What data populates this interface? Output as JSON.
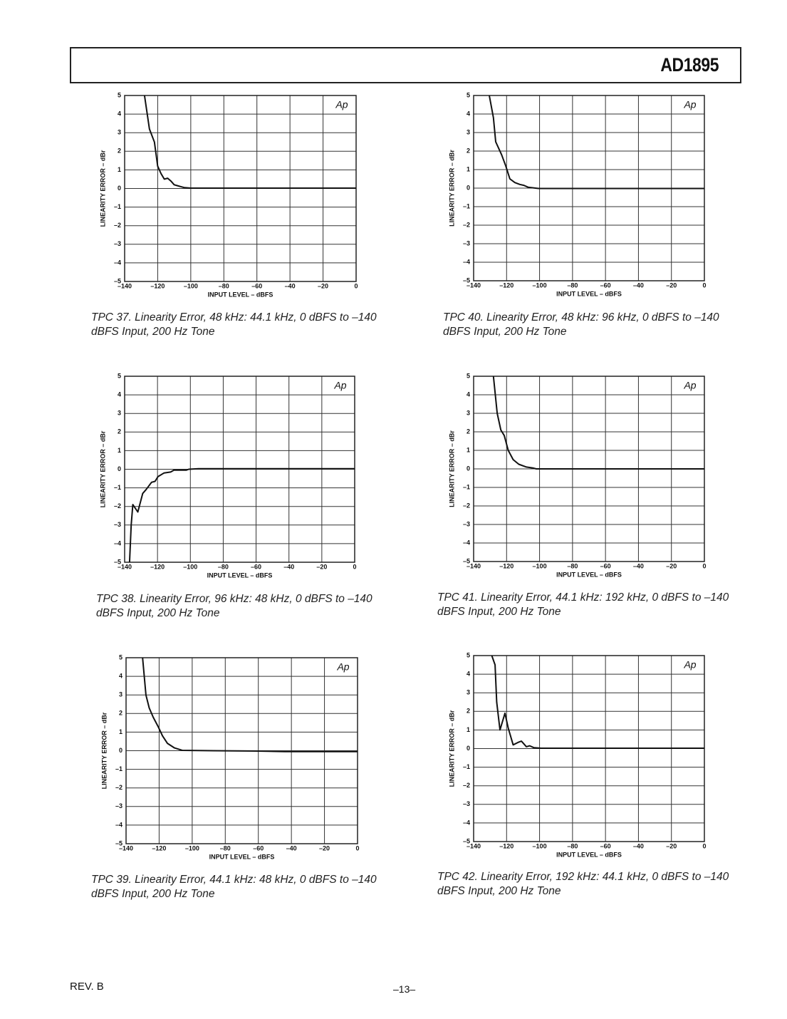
{
  "header": {
    "title": "AD1895"
  },
  "footer": {
    "revision": "REV. B",
    "page": "–13–"
  },
  "chart_data": [
    {
      "type": "line",
      "caption": "TPC 37.  Linearity Error, 48 kHz: 44.1 kHz, 0 dBFS to –140 dBFS Input, 200 Hz Tone",
      "xlabel": "INPUT LEVEL – dBFS",
      "ylabel": "LINEARITY ERROR – dBr",
      "annotation": "Ap",
      "color": "#111111",
      "grid": true,
      "x": [
        -128,
        -125,
        -122,
        -120,
        -118,
        -116,
        -114,
        -112,
        -110,
        -108,
        -106,
        -104,
        -100,
        -80,
        -60,
        -40,
        -20,
        0
      ],
      "values": [
        5,
        3.2,
        2.5,
        1.2,
        0.8,
        0.5,
        0.55,
        0.4,
        0.2,
        0.15,
        0.1,
        0.05,
        0.02,
        0.02,
        0.02,
        0.02,
        0.02,
        0.02
      ],
      "xlim": [
        -140,
        0
      ],
      "ylim": [
        -5,
        5
      ],
      "xticks": [
        {
          "value": -140,
          "label": "–140"
        },
        {
          "value": -120,
          "label": "–120"
        },
        {
          "value": -100,
          "label": "–100"
        },
        {
          "value": -80,
          "label": "–80"
        },
        {
          "value": -60,
          "label": "–60"
        },
        {
          "value": -40,
          "label": "–40"
        },
        {
          "value": -20,
          "label": "–20"
        },
        0
      ],
      "yticks": [
        {
          "value": -5,
          "label": "–5"
        },
        {
          "value": -4,
          "label": "–4"
        },
        {
          "value": -3,
          "label": "–3"
        },
        {
          "value": -2,
          "label": "–2"
        },
        {
          "value": -1,
          "label": "–1"
        },
        0,
        1,
        2,
        3,
        4,
        5
      ]
    },
    {
      "type": "line",
      "caption": "TPC 40.  Linearity Error, 48 kHz: 96 kHz, 0 dBFS to –140 dBFS Input, 200 Hz Tone",
      "xlabel": "INPUT LEVEL – dBFS",
      "ylabel": "LINEARITY ERROR – dBr",
      "annotation": "Ap",
      "color": "#111111",
      "grid": true,
      "x": [
        -130.5,
        -128,
        -126.6,
        -123,
        -120.5,
        -118,
        -115,
        -112,
        -109.5,
        -107,
        -100.6,
        -80,
        -60,
        -40,
        -20,
        0
      ],
      "values": [
        5,
        3.8,
        2.5,
        1.8,
        1.2,
        0.5,
        0.3,
        0.2,
        0.15,
        0.05,
        -0.02,
        -0.02,
        -0.02,
        -0.02,
        -0.02,
        -0.02
      ],
      "xlim": [
        -140,
        0
      ],
      "ylim": [
        -5,
        5
      ],
      "xticks": [
        {
          "value": -140,
          "label": "–140"
        },
        {
          "value": -120,
          "label": "–120"
        },
        {
          "value": -100,
          "label": "–100"
        },
        {
          "value": -80,
          "label": "–80"
        },
        {
          "value": -60,
          "label": "–60"
        },
        {
          "value": -40,
          "label": "–40"
        },
        {
          "value": -20,
          "label": "–20"
        },
        0
      ],
      "yticks": [
        {
          "value": -5,
          "label": "–5"
        },
        {
          "value": -4,
          "label": "–4"
        },
        {
          "value": -3,
          "label": "–3"
        },
        {
          "value": -2,
          "label": "–2"
        },
        {
          "value": -1,
          "label": "–1"
        },
        0,
        1,
        2,
        3,
        4,
        5
      ]
    },
    {
      "type": "line",
      "caption": "TPC 38.  Linearity Error, 96 kHz: 48 kHz, 0 dBFS to –140 dBFS Input, 200 Hz Tone",
      "xlabel": "INPUT LEVEL – dBFS",
      "ylabel": "LINEARITY ERROR – dBr",
      "annotation": "Ap",
      "color": "#111111",
      "grid": true,
      "x": [
        -137,
        -136,
        -135,
        -132,
        -129,
        -127,
        -123.6,
        -121.5,
        -119.7,
        -116,
        -112,
        -110,
        -102.5,
        -101,
        -95,
        -60,
        -20,
        0
      ],
      "values": [
        -5,
        -3,
        -1.9,
        -2.3,
        -1.3,
        -1.1,
        -0.7,
        -0.65,
        -0.4,
        -0.2,
        -0.15,
        -0.05,
        -0.05,
        0,
        0.03,
        0.03,
        0.03,
        0.03
      ],
      "xlim": [
        -140,
        0
      ],
      "ylim": [
        -5,
        5
      ],
      "xticks": [
        {
          "value": -140,
          "label": "–140"
        },
        {
          "value": -120,
          "label": "–120"
        },
        {
          "value": -100,
          "label": "–100"
        },
        {
          "value": -80,
          "label": "–80"
        },
        {
          "value": -60,
          "label": "–60"
        },
        {
          "value": -40,
          "label": "–40"
        },
        {
          "value": -20,
          "label": "–20"
        },
        0
      ],
      "yticks": [
        {
          "value": -5,
          "label": "–5"
        },
        {
          "value": -4,
          "label": "–4"
        },
        {
          "value": -3,
          "label": "–3"
        },
        {
          "value": -2,
          "label": "–2"
        },
        {
          "value": -1,
          "label": "–1"
        },
        0,
        1,
        2,
        3,
        4,
        5
      ]
    },
    {
      "type": "line",
      "caption": "TPC 41.  Linearity Error, 44.1 kHz: 192 kHz, 0 dBFS to –140 dBFS Input, 200 Hz Tone",
      "xlabel": "INPUT LEVEL – dBFS",
      "ylabel": "LINEARITY ERROR – dBr",
      "annotation": "Ap",
      "color": "#111111",
      "grid": true,
      "x": [
        -128,
        -125.7,
        -123.5,
        -121.4,
        -119,
        -116,
        -112.6,
        -108,
        -104,
        -102,
        -80,
        -60,
        -40,
        -20,
        0
      ],
      "values": [
        5,
        3,
        2.1,
        1.8,
        1.0,
        0.5,
        0.25,
        0.1,
        0.05,
        0,
        0,
        0,
        0,
        0,
        0
      ],
      "xlim": [
        -140,
        0
      ],
      "ylim": [
        -5,
        5
      ],
      "xticks": [
        {
          "value": -140,
          "label": "–140"
        },
        {
          "value": -120,
          "label": "–120"
        },
        {
          "value": -100,
          "label": "–100"
        },
        {
          "value": -80,
          "label": "–80"
        },
        {
          "value": -60,
          "label": "–60"
        },
        {
          "value": -40,
          "label": "–40"
        },
        {
          "value": -20,
          "label": "–20"
        },
        0
      ],
      "yticks": [
        {
          "value": -5,
          "label": "–5"
        },
        {
          "value": -4,
          "label": "–4"
        },
        {
          "value": -3,
          "label": "–3"
        },
        {
          "value": -2,
          "label": "–2"
        },
        {
          "value": -1,
          "label": "–1"
        },
        0,
        1,
        2,
        3,
        4,
        5
      ]
    },
    {
      "type": "line",
      "caption": "TPC 39.  Linearity Error, 44.1 kHz: 48 kHz, 0 dBFS to –140 dBFS Input, 200 Hz Tone",
      "xlabel": "INPUT LEVEL – dBFS",
      "ylabel": "LINEARITY ERROR – dBr",
      "annotation": "Ap",
      "color": "#111111",
      "grid": true,
      "x": [
        -130,
        -128,
        -126,
        -123.6,
        -120.6,
        -118,
        -115,
        -110.7,
        -106,
        -87,
        -60,
        -44,
        -20,
        0
      ],
      "values": [
        5,
        3,
        2.3,
        1.8,
        1.3,
        0.8,
        0.4,
        0.15,
        0.02,
        0,
        -0.02,
        -0.05,
        -0.05,
        -0.05
      ],
      "xlim": [
        -140,
        0
      ],
      "ylim": [
        -5,
        5
      ],
      "xticks": [
        {
          "value": -140,
          "label": "–140"
        },
        {
          "value": -120,
          "label": "–120"
        },
        {
          "value": -100,
          "label": "–100"
        },
        {
          "value": -80,
          "label": "–80"
        },
        {
          "value": -60,
          "label": "–60"
        },
        {
          "value": -40,
          "label": "–40"
        },
        {
          "value": -20,
          "label": "–20"
        },
        0
      ],
      "yticks": [
        {
          "value": -5,
          "label": "–5"
        },
        {
          "value": -4,
          "label": "–4"
        },
        {
          "value": -3,
          "label": "–3"
        },
        {
          "value": -2,
          "label": "–2"
        },
        {
          "value": -1,
          "label": "–1"
        },
        0,
        1,
        2,
        3,
        4,
        5
      ]
    },
    {
      "type": "line",
      "caption": "TPC 42.  Linearity Error, 192 kHz: 44.1 kHz, 0 dBFS to –140 dBFS Input, 200 Hz Tone",
      "xlabel": "INPUT LEVEL – dBFS",
      "ylabel": "LINEARITY ERROR – dBr",
      "annotation": "Ap",
      "color": "#111111",
      "grid": true,
      "x": [
        -129,
        -127,
        -126,
        -124,
        -121,
        -119,
        -118,
        -116,
        -112.6,
        -111,
        -108,
        -106,
        -103.5,
        -99,
        -60,
        -20,
        0
      ],
      "values": [
        5,
        4.5,
        2.5,
        1,
        1.9,
        1.1,
        0.8,
        0.2,
        0.35,
        0.4,
        0.1,
        0.15,
        0.05,
        0.02,
        0.02,
        0.02,
        0.02
      ],
      "xlim": [
        -140,
        0
      ],
      "ylim": [
        -5,
        5
      ],
      "xticks": [
        {
          "value": -140,
          "label": "–140"
        },
        {
          "value": -120,
          "label": "–120"
        },
        {
          "value": -100,
          "label": "–100"
        },
        {
          "value": -80,
          "label": "–80"
        },
        {
          "value": -60,
          "label": "–60"
        },
        {
          "value": -40,
          "label": "–40"
        },
        {
          "value": -20,
          "label": "–20"
        },
        0
      ],
      "yticks": [
        {
          "value": -5,
          "label": "–5"
        },
        {
          "value": -4,
          "label": "–4"
        },
        {
          "value": -3,
          "label": "–3"
        },
        {
          "value": -2,
          "label": "–2"
        },
        {
          "value": -1,
          "label": "–1"
        },
        0,
        1,
        2,
        3,
        4,
        5
      ]
    }
  ]
}
